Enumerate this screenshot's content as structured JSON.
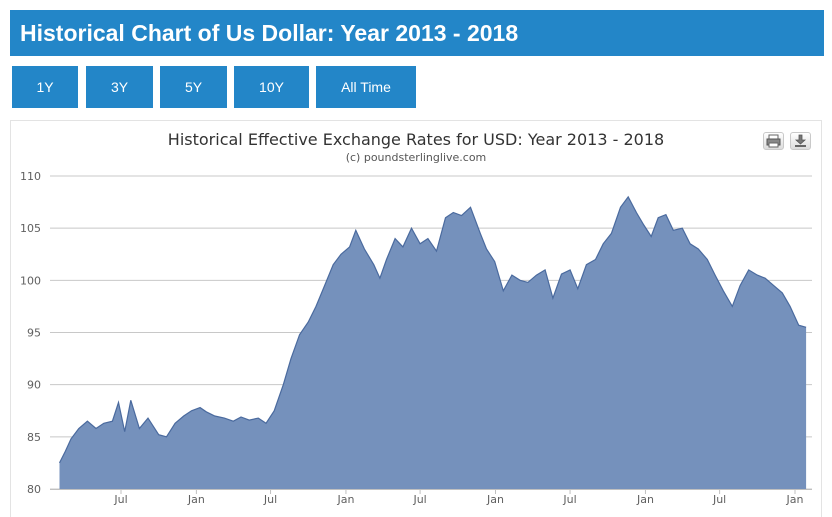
{
  "page": {
    "title": "Historical Chart of Us Dollar: Year 2013 - 2018",
    "buttons": [
      "1Y",
      "3Y",
      "5Y",
      "10Y",
      "All Time"
    ]
  },
  "icons": {
    "print": "printer-icon",
    "download": "download-icon"
  },
  "colors": {
    "accent": "#2386c8",
    "area_fill": "#7591bc",
    "area_line": "#4a6a9e",
    "grid": "#c8c8c8"
  },
  "chart_data": {
    "type": "area",
    "title": "Historical Effective Exchange Rates for USD: Year 2013 - 2018",
    "subtitle": "(c) poundsterlinglive.com",
    "xlabel": "",
    "ylabel": "",
    "ylim": [
      80,
      110
    ],
    "yticks": [
      80,
      85,
      90,
      95,
      100,
      105,
      110
    ],
    "xticks": [
      {
        "date": "2013-07-01",
        "label": "Jul"
      },
      {
        "date": "2014-01-01",
        "label": "Jan"
      },
      {
        "date": "2014-07-01",
        "label": "Jul"
      },
      {
        "date": "2015-01-01",
        "label": "Jan"
      },
      {
        "date": "2015-07-01",
        "label": "Jul"
      },
      {
        "date": "2016-01-01",
        "label": "Jan"
      },
      {
        "date": "2016-07-01",
        "label": "Jul"
      },
      {
        "date": "2017-01-01",
        "label": "Jan"
      },
      {
        "date": "2017-07-01",
        "label": "Jul"
      },
      {
        "date": "2018-01-01",
        "label": "Jan"
      }
    ],
    "grid": true,
    "legend": "none",
    "series": [
      {
        "x": [
          "2013-02-01",
          "2013-02-15",
          "2013-03-01",
          "2013-03-20",
          "2013-04-10",
          "2013-05-01",
          "2013-05-20",
          "2013-06-10",
          "2013-06-25",
          "2013-07-10",
          "2013-07-25",
          "2013-08-15",
          "2013-09-05",
          "2013-10-01",
          "2013-10-20",
          "2013-11-10",
          "2013-12-01",
          "2013-12-20",
          "2014-01-10",
          "2014-01-25",
          "2014-02-15",
          "2014-03-10",
          "2014-04-01",
          "2014-04-20",
          "2014-05-10",
          "2014-06-01",
          "2014-06-20",
          "2014-07-10",
          "2014-08-01",
          "2014-08-20",
          "2014-09-10",
          "2014-10-01",
          "2014-10-20",
          "2014-11-10",
          "2014-12-01",
          "2014-12-20",
          "2015-01-10",
          "2015-01-25",
          "2015-02-15",
          "2015-03-10",
          "2015-03-25",
          "2015-04-10",
          "2015-05-01",
          "2015-05-20",
          "2015-06-10",
          "2015-07-01",
          "2015-07-20",
          "2015-08-10",
          "2015-09-01",
          "2015-09-20",
          "2015-10-10",
          "2015-11-01",
          "2015-11-25",
          "2015-12-10",
          "2015-12-30",
          "2016-01-20",
          "2016-02-10",
          "2016-03-01",
          "2016-03-20",
          "2016-04-10",
          "2016-05-01",
          "2016-05-20",
          "2016-06-10",
          "2016-07-01",
          "2016-07-20",
          "2016-08-10",
          "2016-09-01",
          "2016-09-20",
          "2016-10-10",
          "2016-11-01",
          "2016-11-20",
          "2016-12-10",
          "2016-12-28",
          "2017-01-15",
          "2017-02-01",
          "2017-02-20",
          "2017-03-10",
          "2017-04-01",
          "2017-04-20",
          "2017-05-10",
          "2017-06-01",
          "2017-06-20",
          "2017-07-10",
          "2017-08-01",
          "2017-08-20",
          "2017-09-10",
          "2017-10-01",
          "2017-10-20",
          "2017-11-10",
          "2017-12-01",
          "2017-12-20",
          "2018-01-10",
          "2018-01-28"
        ],
        "values": [
          82.5,
          83.6,
          84.8,
          85.8,
          86.5,
          85.8,
          86.3,
          86.5,
          88.3,
          85.5,
          88.5,
          85.8,
          86.8,
          85.2,
          85.0,
          86.3,
          87.0,
          87.5,
          87.8,
          87.4,
          87.0,
          86.8,
          86.5,
          86.9,
          86.6,
          86.8,
          86.3,
          87.5,
          90.0,
          92.5,
          94.8,
          96.0,
          97.5,
          99.5,
          101.5,
          102.5,
          103.2,
          104.8,
          103.0,
          101.5,
          100.2,
          102.0,
          104.0,
          103.2,
          105.0,
          103.5,
          104.0,
          102.8,
          106.0,
          106.5,
          106.2,
          107.0,
          104.5,
          103.0,
          101.8,
          99.0,
          100.5,
          100.0,
          99.8,
          100.5,
          101.0,
          98.3,
          100.6,
          101.0,
          99.2,
          101.5,
          102.0,
          103.5,
          104.5,
          107.0,
          108.0,
          106.5,
          105.3,
          104.2,
          106.0,
          106.3,
          104.8,
          105.0,
          103.5,
          103.0,
          102.0,
          100.5,
          99.0,
          97.5,
          99.5,
          101.0,
          100.5,
          100.2,
          99.5,
          98.8,
          97.5,
          95.7,
          95.5
        ]
      }
    ]
  }
}
